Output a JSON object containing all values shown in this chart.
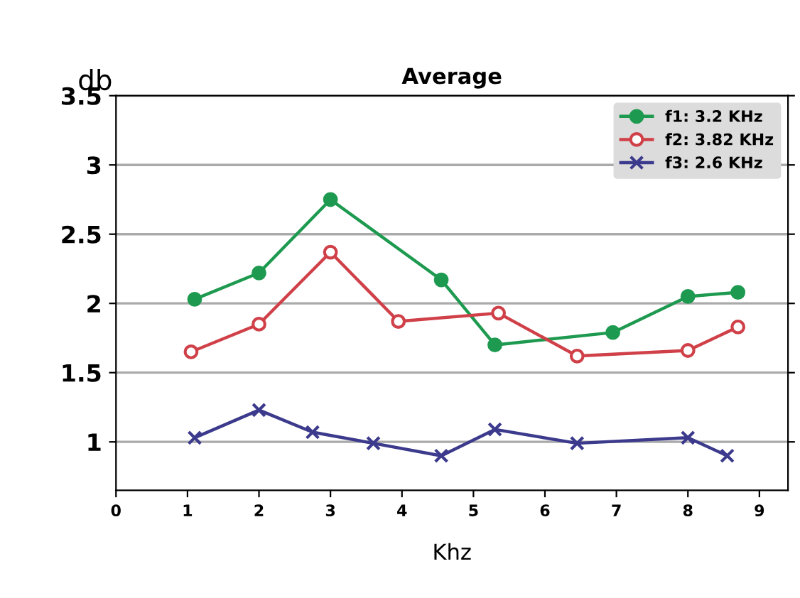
{
  "chart_data": {
    "type": "line",
    "title": "Average",
    "xlabel": "Khz",
    "ylabel": "db",
    "xlim": [
      0,
      9.4
    ],
    "xticks": [
      0,
      1,
      2,
      3,
      4,
      5,
      6,
      7,
      8,
      9
    ],
    "ylim": [
      0.65,
      3.5
    ],
    "yticks": [
      1,
      1.5,
      2,
      2.5,
      3,
      3.5
    ],
    "grid": "y",
    "legend": "top right",
    "line_style": "solid",
    "series": [
      {
        "name": "f1: 3.2 KHz",
        "color": "#1e9a50",
        "marker": "circle",
        "x": [
          1.1,
          2,
          3,
          4.55,
          5.3,
          6.95,
          8,
          8.7
        ],
        "values": [
          2.03,
          2.22,
          2.75,
          2.17,
          1.7,
          1.79,
          2.05,
          2.08
        ]
      },
      {
        "name": "f2: 3.82 KHz",
        "color": "#d04048",
        "marker": "open circle",
        "x": [
          1.05,
          2,
          3,
          3.95,
          5.35,
          6.45,
          8,
          8.7
        ],
        "values": [
          1.65,
          1.85,
          2.37,
          1.87,
          1.93,
          1.62,
          1.66,
          1.83
        ]
      },
      {
        "name": "f3: 2.6 KHz",
        "color": "#3c3a8c",
        "marker": "cross",
        "x": [
          1.1,
          2,
          2.75,
          3.6,
          4.55,
          5.3,
          6.45,
          8,
          8.55
        ],
        "values": [
          1.03,
          1.23,
          1.07,
          0.99,
          0.9,
          1.09,
          0.99,
          1.03,
          0.9
        ]
      }
    ]
  }
}
